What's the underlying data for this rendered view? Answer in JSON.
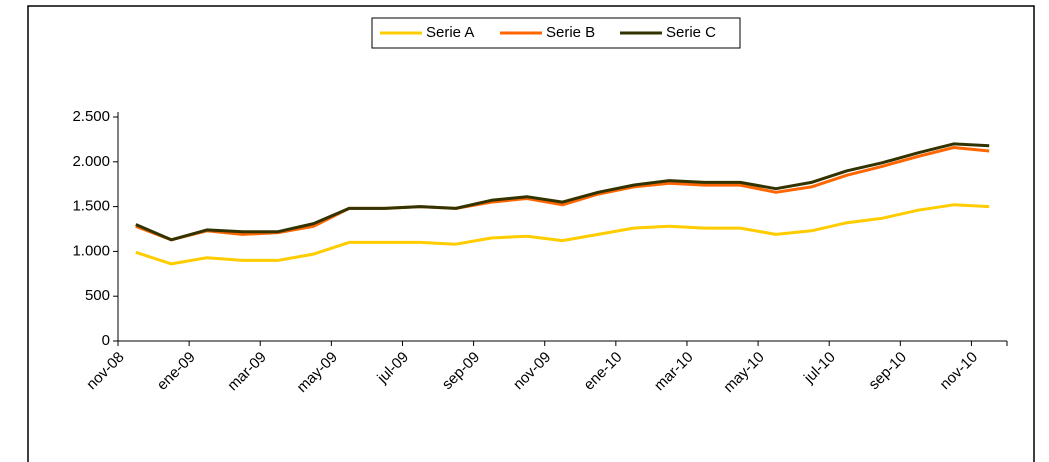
{
  "chart_data": {
    "type": "line",
    "categories": [
      "nov-08",
      null,
      "ene-09",
      null,
      "mar-09",
      null,
      "may-09",
      null,
      "jul-09",
      null,
      "sep-09",
      null,
      "nov-09",
      null,
      "ene-10",
      null,
      "mar-10",
      null,
      "may-10",
      null,
      "jul-10",
      null,
      "sep-10",
      null,
      "nov-10"
    ],
    "series": [
      {
        "name": "Serie A",
        "color": "#ffcc00",
        "values": [
          990,
          860,
          930,
          900,
          900,
          970,
          1100,
          1100,
          1100,
          1080,
          1150,
          1170,
          1120,
          1190,
          1260,
          1280,
          1260,
          1260,
          1190,
          1230,
          1320,
          1370,
          1460,
          1520,
          1500
        ]
      },
      {
        "name": "Serie B",
        "color": "#ff6600",
        "values": [
          1280,
          1130,
          1230,
          1190,
          1210,
          1280,
          1480,
          1480,
          1500,
          1480,
          1550,
          1590,
          1520,
          1640,
          1720,
          1760,
          1740,
          1740,
          1660,
          1720,
          1850,
          1950,
          2060,
          2160,
          2120
        ]
      },
      {
        "name": "Serie C",
        "color": "#333300",
        "values": [
          1300,
          1130,
          1240,
          1220,
          1220,
          1310,
          1480,
          1480,
          1500,
          1480,
          1570,
          1610,
          1550,
          1660,
          1740,
          1790,
          1770,
          1770,
          1700,
          1770,
          1900,
          1990,
          2100,
          2200,
          2180
        ]
      }
    ],
    "ylim": [
      0,
      2500
    ],
    "yticks": [
      0,
      500,
      {
        "value": 1000,
        "label": "1.000"
      },
      {
        "value": 1500,
        "label": "1.500"
      },
      {
        "value": 2000,
        "label": "2.000"
      },
      {
        "value": 2500,
        "label": "2.500"
      }
    ],
    "legend": "top"
  }
}
